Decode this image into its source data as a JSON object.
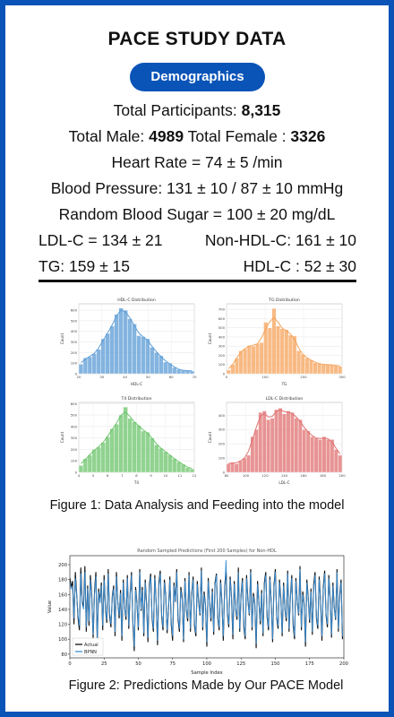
{
  "header": {
    "title": "PACE STUDY DATA",
    "section_label": "Demographics"
  },
  "stats": {
    "participants_label": "Total Participants:",
    "participants_value": "8,315",
    "male_label": "Total Male:",
    "male_value": "4989",
    "female_label": "Total Female :",
    "female_value": "3326",
    "heart_rate": "Heart Rate = 74 ± 5 /min",
    "blood_pressure": "Blood Pressure: 131 ± 10 / 87 ± 10 mmHg",
    "blood_sugar": "Random Blood Sugar = 100 ± 20  mg/dL",
    "ldl": "LDL-C = 134 ± 21",
    "non_hdl": "Non-HDL-C: 161 ± 10",
    "tg": "TG: 159 ± 15",
    "hdl": "HDL-C : 52 ±  30"
  },
  "figure1": {
    "caption": "Figure 1: Data Analysis and Feeding into the model"
  },
  "figure2": {
    "caption": "Figure 2: Predictions Made by Our PACE Model"
  },
  "chart_data": [
    {
      "type": "bar",
      "title": "HDL-C Distribution",
      "xlabel": "HDL-C",
      "ylabel": "Count",
      "color": "#5b9bd5",
      "x": [
        20,
        22,
        24,
        26,
        28,
        30,
        32,
        34,
        36,
        38,
        40,
        42,
        44,
        46,
        48,
        50,
        52,
        54,
        56,
        58,
        60,
        62,
        64,
        66,
        68,
        70
      ],
      "values": [
        90,
        150,
        160,
        190,
        230,
        330,
        380,
        450,
        560,
        620,
        600,
        520,
        470,
        360,
        350,
        330,
        250,
        200,
        170,
        110,
        100,
        60,
        40,
        30,
        30,
        25
      ],
      "xticks": [
        "20",
        "30",
        "40",
        "50",
        "60",
        "70"
      ],
      "yticks": [
        "0",
        "100",
        "200",
        "300",
        "400",
        "500",
        "600"
      ],
      "ylim": [
        0,
        660
      ]
    },
    {
      "type": "bar",
      "title": "TG Distribution",
      "xlabel": "TG",
      "ylabel": "Count",
      "color": "#f5a35b",
      "x": [
        20,
        30,
        40,
        50,
        60,
        70,
        80,
        90,
        100,
        110,
        120,
        130,
        140,
        150,
        160,
        170,
        180,
        190,
        200,
        210,
        220,
        230,
        240,
        250,
        260,
        270,
        280,
        290
      ],
      "values": [
        40,
        100,
        170,
        250,
        270,
        310,
        300,
        330,
        340,
        560,
        500,
        710,
        520,
        490,
        480,
        420,
        410,
        250,
        210,
        170,
        150,
        120,
        110,
        100,
        100,
        100,
        90,
        80
      ],
      "xticks": [
        "0",
        "100",
        "200",
        "300"
      ],
      "yticks": [
        "0",
        "100",
        "200",
        "300",
        "400",
        "500",
        "600",
        "700"
      ],
      "ylim": [
        0,
        760
      ]
    },
    {
      "type": "bar",
      "title": "T4 Distribution",
      "xlabel": "T4",
      "ylabel": "Count",
      "color": "#6cc46b",
      "x": [
        4.0,
        4.3,
        4.6,
        4.9,
        5.2,
        5.5,
        5.8,
        6.1,
        6.4,
        6.7,
        7.0,
        7.3,
        7.6,
        7.9,
        8.2,
        8.5,
        8.8,
        9.1,
        9.4,
        9.7,
        10.0,
        10.3,
        10.6,
        10.9,
        11.2,
        11.5
      ],
      "values": [
        60,
        120,
        150,
        200,
        220,
        260,
        310,
        380,
        420,
        500,
        570,
        470,
        440,
        410,
        360,
        350,
        300,
        240,
        210,
        180,
        150,
        120,
        90,
        70,
        40,
        30
      ],
      "xticks": [
        "4",
        "5",
        "6",
        "7",
        "8",
        "9",
        "10",
        "11",
        "12"
      ],
      "yticks": [
        "0",
        "100",
        "200",
        "300",
        "400",
        "500",
        "600"
      ],
      "ylim": [
        0,
        610
      ]
    },
    {
      "type": "bar",
      "title": "LDL-C Distribution",
      "xlabel": "LDL-C",
      "ylabel": "Count",
      "color": "#e07070",
      "x": [
        82,
        86,
        90,
        94,
        98,
        102,
        106,
        110,
        114,
        118,
        122,
        126,
        130,
        134,
        138,
        142,
        146,
        150,
        154,
        158,
        162,
        166,
        170,
        174,
        178,
        182,
        186,
        190,
        194
      ],
      "values": [
        60,
        70,
        60,
        80,
        100,
        120,
        250,
        300,
        420,
        430,
        370,
        380,
        440,
        450,
        410,
        430,
        420,
        380,
        370,
        300,
        290,
        250,
        240,
        230,
        250,
        230,
        230,
        160,
        120
      ],
      "xticks": [
        "80",
        "100",
        "120",
        "140",
        "160",
        "180",
        "200"
      ],
      "yticks": [
        "0",
        "100",
        "200",
        "300",
        "400"
      ],
      "ylim": [
        0,
        490
      ]
    },
    {
      "type": "line",
      "title": "Random Sampled Predictions (First 200 Samples) for Non-HDL",
      "xlabel": "Sample Index",
      "ylabel": "Value",
      "xlim": [
        0,
        200
      ],
      "ylim": [
        75,
        212
      ],
      "xticks": [
        "0",
        "25",
        "50",
        "75",
        "100",
        "125",
        "150",
        "175",
        "200"
      ],
      "yticks": [
        "80",
        "100",
        "120",
        "140",
        "160",
        "180",
        "200"
      ],
      "series": [
        {
          "name": "Actual",
          "color": "#111111",
          "values": [
            182,
            170,
            178,
            120,
            190,
            160,
            128,
            112,
            196,
            150,
            144,
            198,
            110,
            172,
            118,
            186,
            158,
            101,
            164,
            190,
            95,
            168,
            150,
            176,
            112,
            186,
            140,
            122,
            194,
            132,
            116,
            158,
            172,
            104,
            190,
            150,
            128,
            166,
            98,
            180,
            142,
            126,
            186,
            114,
            160,
            190,
            122,
            84,
            170,
            148,
            112,
            194,
            138,
            170,
            104,
            180,
            148,
            96,
            172,
            188,
            128,
            110,
            186,
            150,
            92,
            176,
            192,
            130,
            112,
            180,
            158,
            108,
            140,
            184,
            120,
            98,
            176,
            150,
            194,
            126,
            110,
            170,
            156,
            96,
            182,
            140,
            124,
            190,
            110,
            162,
            184,
            118,
            104,
            178,
            150,
            132,
            196,
            112,
            164,
            146,
            90,
            182,
            150,
            124,
            168,
            106,
            176,
            188,
            128,
            112,
            180,
            150,
            98,
            170,
            192,
            134,
            116,
            184,
            156,
            100,
            178,
            140,
            126,
            196,
            110,
            160,
            182,
            116,
            100,
            186,
            152,
            132,
            194,
            112,
            162,
            148,
            88,
            178,
            150,
            120,
            166,
            104,
            176,
            190,
            130,
            112,
            184,
            150,
            96,
            172,
            194,
            128,
            114,
            180,
            154,
            104,
            176,
            140,
            124,
            192,
            110,
            158,
            186,
            118,
            100,
            182,
            150,
            132,
            198,
            112,
            164,
            148,
            90,
            180,
            156,
            122,
            168,
            106,
            174,
            190,
            128,
            114,
            184,
            152,
            98,
            170,
            192,
            132,
            116,
            186,
            154,
            102,
            176,
            142,
            126,
            194,
            110,
            160,
            180,
            100
          ]
        },
        {
          "name": "BPNN",
          "color": "#3a8fd6",
          "values": [
            176,
            168,
            170,
            128,
            182,
            158,
            132,
            118,
            188,
            148,
            140,
            190,
            116,
            168,
            124,
            180,
            154,
            106,
            160,
            184,
            100,
            164,
            148,
            172,
            118,
            180,
            142,
            126,
            188,
            136,
            120,
            156,
            168,
            110,
            184,
            150,
            132,
            162,
            104,
            176,
            142,
            130,
            182,
            118,
            158,
            186,
            126,
            90,
            166,
            148,
            116,
            190,
            140,
            166,
            108,
            176,
            146,
            102,
            168,
            184,
            130,
            114,
            182,
            150,
            98,
            172,
            188,
            132,
            116,
            176,
            156,
            112,
            142,
            180,
            124,
            104,
            172,
            150,
            190,
            130,
            114,
            166,
            154,
            100,
            178,
            140,
            128,
            186,
            114,
            160,
            180,
            122,
            108,
            174,
            148,
            134,
            192,
            116,
            160,
            146,
            96,
            178,
            150,
            128,
            164,
            110,
            172,
            186,
            130,
            116,
            176,
            150,
            104,
            166,
            206,
            136,
            120,
            180,
            154,
            106,
            174,
            140,
            130,
            190,
            114,
            158,
            178,
            120,
            104,
            182,
            150,
            134,
            190,
            116,
            158,
            148,
            94,
            174,
            150,
            124,
            162,
            108,
            172,
            186,
            132,
            116,
            180,
            150,
            100,
            168,
            190,
            130,
            118,
            176,
            152,
            108,
            172,
            140,
            128,
            188,
            114,
            156,
            182,
            122,
            104,
            178,
            150,
            134,
            194,
            116,
            160,
            148,
            96,
            176,
            154,
            126,
            164,
            110,
            170,
            186,
            130,
            118,
            180,
            150,
            104,
            166,
            188,
            134,
            120,
            182,
            152,
            106,
            172,
            142,
            128,
            190,
            114,
            158,
            176,
            104
          ]
        }
      ]
    }
  ]
}
